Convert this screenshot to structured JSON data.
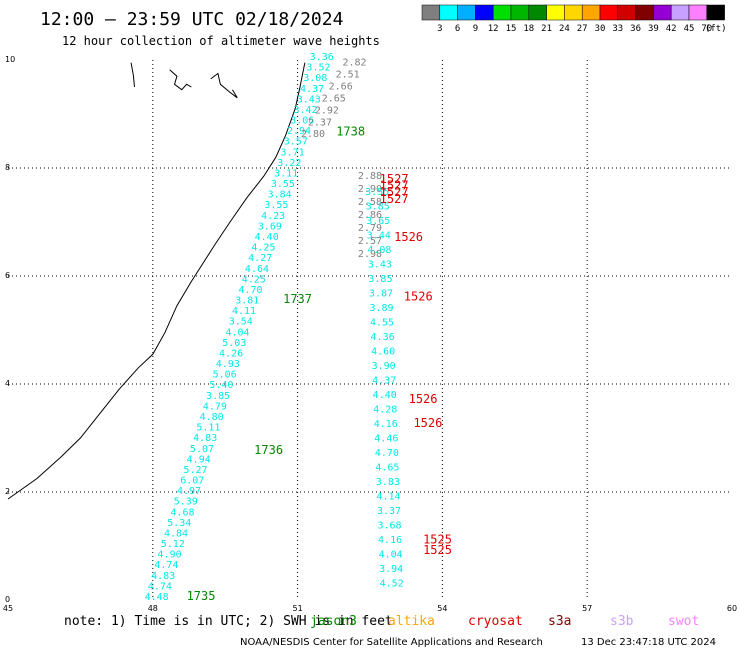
{
  "header": {
    "title": "12:00 – 23:59 UTC 02/18/2024",
    "subtitle": "12 hour collection of altimeter wave heights"
  },
  "colorbar": {
    "colors": [
      "#7f7f7f",
      "#00ffff",
      "#00b0ff",
      "#0000ff",
      "#00dd00",
      "#00b700",
      "#008800",
      "#ffff00",
      "#ffd700",
      "#ffa500",
      "#ff0000",
      "#d00000",
      "#800000",
      "#9400d3",
      "#c8a0ff",
      "#ff80ff",
      "#000000"
    ],
    "labels": [
      "3",
      "6",
      "9",
      "12",
      "15",
      "18",
      "21",
      "24",
      "27",
      "30",
      "33",
      "36",
      "39",
      "42",
      "45",
      "70"
    ],
    "unit": "(ft)"
  },
  "axes": {
    "x_ticks": [
      "45",
      "48",
      "51",
      "54",
      "57",
      "60"
    ],
    "y_ticks": [
      "0",
      "2",
      "4",
      "6",
      "8",
      "10"
    ],
    "x_values": [
      45,
      48,
      51,
      54,
      57,
      60
    ],
    "y_values": [
      0,
      2,
      4,
      6,
      8,
      10
    ]
  },
  "colors": {
    "cyan": "#00e8e8",
    "gray": "#7f7f7f",
    "green": "#008800",
    "red": "#e00000"
  },
  "tracks": {
    "cyan_west": {
      "color": "cyan",
      "start": [
        47.83,
        0.0
      ],
      "end": [
        51.25,
        10.0
      ],
      "values": [
        "4.48",
        "4.74",
        "4.83",
        "4.74",
        "4.90",
        "5.12",
        "4.84",
        "5.34",
        "4.68",
        "5.39",
        "4.97",
        "6.07",
        "5.27",
        "4.94",
        "5.07",
        "4.83",
        "5.11",
        "4.80",
        "4.79",
        "3.85",
        "5.40",
        "5.06",
        "4.93",
        "4.26",
        "5.03",
        "4.04",
        "3.54",
        "4.11",
        "3.81",
        "4.70",
        "4.25",
        "4.64",
        "4.27",
        "4.25",
        "4.40",
        "3.69",
        "4.23",
        "3.55",
        "3.84",
        "3.55",
        "3.11",
        "3.22",
        "3.71",
        "3.57",
        "2.94",
        "3.06",
        "3.42",
        "3.43",
        "4.37",
        "3.08",
        "3.52",
        "3.36"
      ]
    },
    "gray_west": {
      "color": "gray",
      "start": [
        51.07,
        8.57
      ],
      "end": [
        51.93,
        9.9
      ],
      "values": [
        "2.80",
        "2.37",
        "2.92",
        "2.65",
        "2.66",
        "2.51",
        "2.82"
      ]
    },
    "gray_east": {
      "color": "gray",
      "start": [
        52.25,
        6.35
      ],
      "end": [
        52.25,
        7.8
      ],
      "values": [
        "2.98",
        "2.57",
        "2.79",
        "2.86",
        "2.58",
        "2.90",
        "2.88"
      ]
    },
    "cyan_east": {
      "color": "cyan",
      "start": [
        52.7,
        0.25
      ],
      "end": [
        52.4,
        7.5
      ],
      "values": [
        "4.52",
        "3.94",
        "4.04",
        "4.16",
        "3.68",
        "3.37",
        "4.14",
        "3.83",
        "4.65",
        "4.70",
        "4.46",
        "4.16",
        "4.28",
        "4.40",
        "4.37",
        "3.90",
        "4.60",
        "4.36",
        "4.55",
        "3.89",
        "3.87",
        "3.85",
        "3.43",
        "4.08",
        "3.44",
        "3.65",
        "3.85",
        "3.55"
      ]
    }
  },
  "time_labels": [
    {
      "text": "1735",
      "color": "green",
      "x": 48.7,
      "y": 0.0
    },
    {
      "text": "1736",
      "color": "green",
      "x": 50.1,
      "y": 2.7
    },
    {
      "text": "1737",
      "color": "green",
      "x": 50.7,
      "y": 5.5
    },
    {
      "text": "1738",
      "color": "green",
      "x": 51.8,
      "y": 8.6
    },
    {
      "text": "1525",
      "color": "red",
      "x": 53.6,
      "y": 0.85
    },
    {
      "text": "1525",
      "color": "red",
      "x": 53.6,
      "y": 1.05
    },
    {
      "text": "1526",
      "color": "red",
      "x": 53.4,
      "y": 3.2
    },
    {
      "text": "1526",
      "color": "red",
      "x": 53.3,
      "y": 3.65
    },
    {
      "text": "1526",
      "color": "red",
      "x": 53.2,
      "y": 5.55
    },
    {
      "text": "1526",
      "color": "red",
      "x": 53.0,
      "y": 6.65
    },
    {
      "text": "1527",
      "color": "red",
      "x": 52.7,
      "y": 7.35
    },
    {
      "text": "1527",
      "color": "red",
      "x": 52.7,
      "y": 7.48
    },
    {
      "text": "1527",
      "color": "red",
      "x": 52.7,
      "y": 7.6
    },
    {
      "text": "1527",
      "color": "red",
      "x": 52.7,
      "y": 7.72
    }
  ],
  "coastline": [
    [
      45.0,
      1.87
    ],
    [
      45.6,
      2.25
    ],
    [
      46.1,
      2.65
    ],
    [
      46.5,
      3.0
    ],
    [
      46.9,
      3.45
    ],
    [
      47.3,
      3.9
    ],
    [
      47.7,
      4.3
    ],
    [
      48.0,
      4.55
    ],
    [
      48.25,
      4.95
    ],
    [
      48.5,
      5.45
    ],
    [
      48.8,
      5.9
    ],
    [
      49.05,
      6.25
    ],
    [
      49.3,
      6.6
    ],
    [
      49.6,
      7.0
    ],
    [
      49.95,
      7.45
    ],
    [
      50.3,
      7.85
    ],
    [
      50.55,
      8.2
    ],
    [
      50.75,
      8.6
    ],
    [
      50.95,
      9.1
    ],
    [
      51.05,
      9.5
    ],
    [
      51.15,
      9.95
    ]
  ],
  "islands": [
    [
      [
        47.55,
        9.95
      ],
      [
        47.6,
        9.7
      ],
      [
        47.62,
        9.5
      ]
    ],
    [
      [
        48.35,
        9.82
      ],
      [
        48.5,
        9.7
      ],
      [
        48.45,
        9.55
      ],
      [
        48.6,
        9.45
      ],
      [
        48.7,
        9.55
      ],
      [
        48.8,
        9.5
      ]
    ],
    [
      [
        49.2,
        9.65
      ],
      [
        49.35,
        9.75
      ],
      [
        49.4,
        9.55
      ],
      [
        49.6,
        9.4
      ],
      [
        49.75,
        9.3
      ],
      [
        49.65,
        9.45
      ]
    ]
  ],
  "footer": {
    "note_prefix": "note: 1) Time is in UTC; 2) SWH is in feet",
    "satellites": [
      {
        "name": "jason3",
        "color": "#008800"
      },
      {
        "name": "altika",
        "color": "#ffa500"
      },
      {
        "name": "cryosat",
        "color": "#e00000"
      },
      {
        "name": "s3a",
        "color": "#800000"
      },
      {
        "name": "s3b",
        "color": "#c8a0ff"
      },
      {
        "name": "swot",
        "color": "#ff80ff"
      }
    ],
    "credit": "NOAA/NESDIS Center for Satellite Applications and Research",
    "generated": "13 Dec 23:47:18 UTC 2024"
  }
}
